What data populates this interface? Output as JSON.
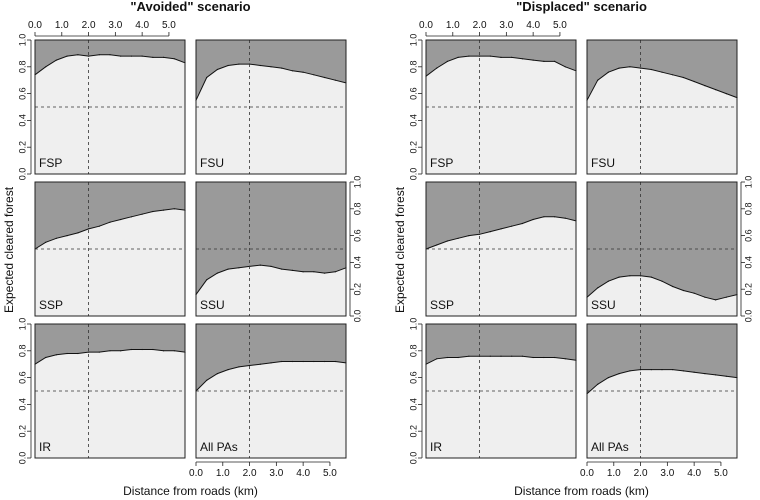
{
  "chart_data": {
    "type": "area",
    "xlabel": "Distance from roads (km)",
    "ylabel": "Expected cleared forest",
    "xlim": [
      0,
      5.6
    ],
    "ylim": [
      0,
      1.0
    ],
    "x_ticks": [
      "0.0",
      "1.0",
      "2.0",
      "3.0",
      "4.0",
      "5.0"
    ],
    "y_ticks": [
      "0.0",
      "0.2",
      "0.4",
      "0.6",
      "0.8",
      "1.0"
    ],
    "reference_lines": {
      "x": 2.0,
      "y": 0.5
    },
    "colors": {
      "upper_fill": "#9a9a9a",
      "lower_fill": "#efefef",
      "line": "#111111",
      "frame": "#222222"
    },
    "x": [
      0,
      0.4,
      0.8,
      1.2,
      1.6,
      2.0,
      2.4,
      2.8,
      3.2,
      3.6,
      4.0,
      4.4,
      4.8,
      5.2,
      5.6
    ],
    "scenarios": [
      {
        "title": "\"Avoided\" scenario",
        "panels": [
          {
            "label": "FSP",
            "values": [
              0.74,
              0.8,
              0.85,
              0.88,
              0.89,
              0.88,
              0.89,
              0.89,
              0.88,
              0.88,
              0.88,
              0.87,
              0.87,
              0.86,
              0.83
            ]
          },
          {
            "label": "FSU",
            "values": [
              0.55,
              0.72,
              0.78,
              0.81,
              0.82,
              0.82,
              0.81,
              0.8,
              0.79,
              0.77,
              0.76,
              0.74,
              0.72,
              0.7,
              0.68
            ]
          },
          {
            "label": "SSP",
            "values": [
              0.5,
              0.55,
              0.58,
              0.6,
              0.62,
              0.65,
              0.67,
              0.7,
              0.72,
              0.74,
              0.76,
              0.78,
              0.79,
              0.8,
              0.79
            ]
          },
          {
            "label": "SSU",
            "values": [
              0.16,
              0.27,
              0.32,
              0.35,
              0.36,
              0.37,
              0.38,
              0.37,
              0.35,
              0.34,
              0.33,
              0.33,
              0.32,
              0.33,
              0.36
            ]
          },
          {
            "label": "IR",
            "values": [
              0.7,
              0.75,
              0.77,
              0.78,
              0.78,
              0.79,
              0.79,
              0.8,
              0.8,
              0.81,
              0.81,
              0.81,
              0.8,
              0.8,
              0.79
            ]
          },
          {
            "label": "All PAs",
            "values": [
              0.5,
              0.58,
              0.63,
              0.66,
              0.68,
              0.69,
              0.7,
              0.71,
              0.72,
              0.72,
              0.72,
              0.72,
              0.72,
              0.72,
              0.71
            ]
          }
        ]
      },
      {
        "title": "\"Displaced\" scenario",
        "panels": [
          {
            "label": "FSP",
            "values": [
              0.73,
              0.79,
              0.84,
              0.87,
              0.88,
              0.88,
              0.88,
              0.87,
              0.87,
              0.86,
              0.85,
              0.84,
              0.84,
              0.8,
              0.77
            ]
          },
          {
            "label": "FSU",
            "values": [
              0.55,
              0.7,
              0.76,
              0.79,
              0.8,
              0.79,
              0.78,
              0.76,
              0.74,
              0.72,
              0.69,
              0.66,
              0.63,
              0.6,
              0.57
            ]
          },
          {
            "label": "SSP",
            "values": [
              0.5,
              0.53,
              0.56,
              0.58,
              0.6,
              0.61,
              0.63,
              0.65,
              0.67,
              0.69,
              0.72,
              0.74,
              0.74,
              0.73,
              0.71
            ]
          },
          {
            "label": "SSU",
            "values": [
              0.14,
              0.21,
              0.26,
              0.29,
              0.3,
              0.3,
              0.29,
              0.26,
              0.22,
              0.19,
              0.17,
              0.14,
              0.12,
              0.14,
              0.16
            ]
          },
          {
            "label": "IR",
            "values": [
              0.7,
              0.74,
              0.75,
              0.75,
              0.76,
              0.76,
              0.76,
              0.76,
              0.76,
              0.76,
              0.75,
              0.75,
              0.75,
              0.74,
              0.73
            ]
          },
          {
            "label": "All PAs",
            "values": [
              0.48,
              0.55,
              0.6,
              0.63,
              0.65,
              0.66,
              0.66,
              0.66,
              0.66,
              0.65,
              0.64,
              0.63,
              0.62,
              0.61,
              0.6
            ]
          }
        ]
      }
    ]
  }
}
